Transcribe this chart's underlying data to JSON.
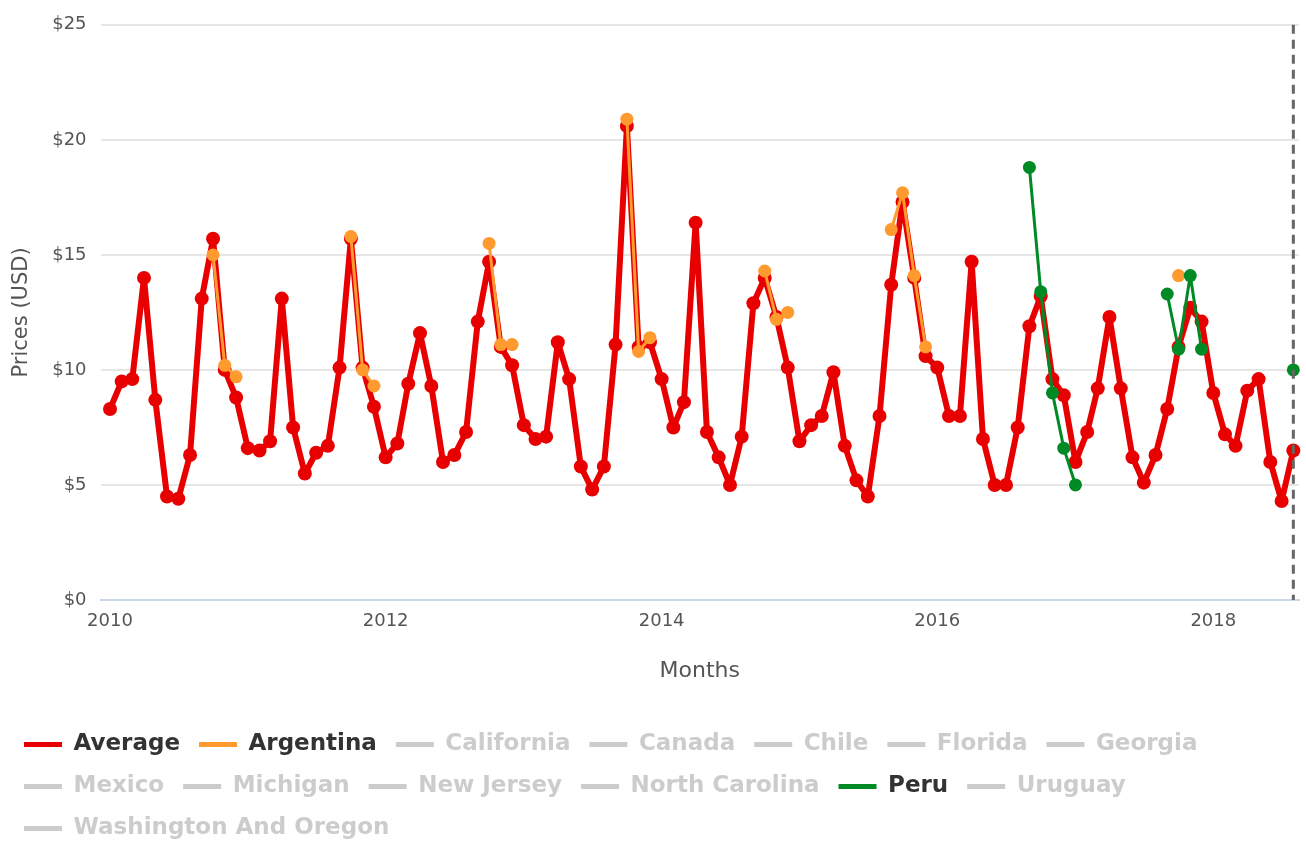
{
  "chart_data": {
    "type": "line",
    "xlabel": "Months",
    "ylabel": "Prices (USD)",
    "grid": "y",
    "legend": "bottom",
    "marker": "circle",
    "xlim": [
      "2009-12-07",
      "2018-08-16"
    ],
    "xticks": [
      {
        "value": "2010-01",
        "label": "2010"
      },
      {
        "value": "2012-01",
        "label": "2012"
      },
      {
        "value": "2014-01",
        "label": "2014"
      },
      {
        "value": "2016-01",
        "label": "2016"
      },
      {
        "value": "2018-01",
        "label": "2018"
      }
    ],
    "ylim": [
      0,
      25
    ],
    "yticks": [
      {
        "value": 0,
        "label": "$0"
      },
      {
        "value": 5,
        "label": "$5"
      },
      {
        "value": 10,
        "label": "$10"
      },
      {
        "value": 15,
        "label": "$15"
      },
      {
        "value": 20,
        "label": "$20"
      },
      {
        "value": 25,
        "label": "$25"
      }
    ],
    "ref_lines": [
      {
        "axis": "x",
        "value": "2018-08",
        "color": "#666666",
        "line_style": "dashed"
      }
    ],
    "x": [
      "2010-01",
      "2010-02",
      "2010-03",
      "2010-04",
      "2010-05",
      "2010-06",
      "2010-07",
      "2010-08",
      "2010-09",
      "2010-10",
      "2010-11",
      "2010-12",
      "2011-01",
      "2011-02",
      "2011-03",
      "2011-04",
      "2011-05",
      "2011-06",
      "2011-07",
      "2011-08",
      "2011-09",
      "2011-10",
      "2011-11",
      "2011-12",
      "2012-01",
      "2012-02",
      "2012-03",
      "2012-04",
      "2012-05",
      "2012-06",
      "2012-07",
      "2012-08",
      "2012-09",
      "2012-10",
      "2012-11",
      "2012-12",
      "2013-01",
      "2013-02",
      "2013-03",
      "2013-04",
      "2013-05",
      "2013-06",
      "2013-07",
      "2013-08",
      "2013-09",
      "2013-10",
      "2013-11",
      "2013-12",
      "2014-01",
      "2014-02",
      "2014-03",
      "2014-04",
      "2014-05",
      "2014-06",
      "2014-07",
      "2014-08",
      "2014-09",
      "2014-10",
      "2014-11",
      "2014-12",
      "2015-01",
      "2015-02",
      "2015-03",
      "2015-04",
      "2015-05",
      "2015-06",
      "2015-07",
      "2015-08",
      "2015-09",
      "2015-10",
      "2015-11",
      "2015-12",
      "2016-01",
      "2016-02",
      "2016-03",
      "2016-04",
      "2016-05",
      "2016-06",
      "2016-07",
      "2016-08",
      "2016-09",
      "2016-10",
      "2016-11",
      "2016-12",
      "2017-01",
      "2017-02",
      "2017-03",
      "2017-04",
      "2017-05",
      "2017-06",
      "2017-07",
      "2017-08",
      "2017-09",
      "2017-10",
      "2017-11",
      "2017-12",
      "2018-01",
      "2018-02",
      "2018-03",
      "2018-04",
      "2018-05",
      "2018-06",
      "2018-07",
      "2018-08"
    ],
    "series": [
      {
        "name": "Average",
        "color": "#e80000",
        "values": [
          8.3,
          9.5,
          9.6,
          14.0,
          8.7,
          4.5,
          4.4,
          6.3,
          13.1,
          15.7,
          10.0,
          8.8,
          6.6,
          6.5,
          6.9,
          13.1,
          7.5,
          5.5,
          6.4,
          6.7,
          10.1,
          15.7,
          10.1,
          8.4,
          6.2,
          6.8,
          9.4,
          11.6,
          9.3,
          6.0,
          6.3,
          7.3,
          12.1,
          14.7,
          11.0,
          10.2,
          7.6,
          7.0,
          7.1,
          11.2,
          9.6,
          5.8,
          4.8,
          5.8,
          11.1,
          20.6,
          11.0,
          11.2,
          9.6,
          7.5,
          8.6,
          16.4,
          7.3,
          6.2,
          5.0,
          7.1,
          12.9,
          14.0,
          12.3,
          10.1,
          6.9,
          7.6,
          8.0,
          9.9,
          6.7,
          5.2,
          4.5,
          8.0,
          13.7,
          17.3,
          14.0,
          10.6,
          10.1,
          8.0,
          8.0,
          14.7,
          7.0,
          5.0,
          5.0,
          7.5,
          11.9,
          13.2,
          9.6,
          8.9,
          6.0,
          7.3,
          9.2,
          12.3,
          9.2,
          6.2,
          5.1,
          6.3,
          8.3,
          11.0,
          12.7,
          12.1,
          9.0,
          7.2,
          6.7,
          9.1,
          9.6,
          6.0,
          4.3,
          6.5
        ]
      },
      {
        "name": "Argentina",
        "color": "#ff9a2e",
        "values": [
          null,
          null,
          null,
          null,
          null,
          null,
          null,
          null,
          null,
          15.0,
          10.2,
          9.7,
          null,
          null,
          null,
          null,
          null,
          null,
          null,
          null,
          null,
          15.8,
          10.0,
          9.3,
          null,
          null,
          null,
          null,
          null,
          null,
          null,
          null,
          null,
          15.5,
          11.1,
          11.1,
          null,
          null,
          null,
          null,
          null,
          null,
          null,
          null,
          null,
          20.9,
          10.8,
          11.4,
          null,
          null,
          null,
          null,
          null,
          null,
          null,
          null,
          null,
          14.3,
          12.2,
          12.5,
          null,
          null,
          null,
          null,
          null,
          null,
          null,
          null,
          16.1,
          17.7,
          14.1,
          11.0,
          null,
          null,
          null,
          null,
          null,
          null,
          null,
          null,
          null,
          null,
          null,
          null,
          null,
          null,
          null,
          null,
          null,
          null,
          null,
          null,
          null,
          14.1,
          null,
          null,
          null,
          null,
          null,
          null,
          null,
          null,
          null,
          null
        ]
      },
      {
        "name": "California",
        "color": "#cccccc",
        "values": [
          null,
          null,
          null,
          null,
          null,
          null,
          null,
          null,
          null,
          null,
          null,
          null,
          null,
          null,
          null,
          null,
          null,
          null,
          null,
          null,
          null,
          null,
          null,
          null,
          null,
          null,
          null,
          null,
          null,
          null,
          null,
          null,
          null,
          null,
          null,
          null,
          null,
          null,
          null,
          null,
          null,
          null,
          null,
          null,
          null,
          null,
          null,
          null,
          null,
          null,
          null,
          null,
          null,
          null,
          null,
          null,
          null,
          null,
          null,
          null,
          null,
          null,
          null,
          null,
          null,
          null,
          null,
          null,
          null,
          null,
          null,
          null,
          null,
          null,
          null,
          null,
          null,
          null,
          null,
          null,
          null,
          null,
          null,
          null,
          null,
          null,
          null,
          null,
          null,
          null,
          null,
          null,
          null,
          null,
          null,
          null,
          null,
          null,
          null,
          null,
          null,
          null,
          null,
          null
        ]
      },
      {
        "name": "Canada",
        "color": "#cccccc",
        "values": [
          null,
          null,
          null,
          null,
          null,
          null,
          null,
          null,
          null,
          null,
          null,
          null,
          null,
          null,
          null,
          null,
          null,
          null,
          null,
          null,
          null,
          null,
          null,
          null,
          null,
          null,
          null,
          null,
          null,
          null,
          null,
          null,
          null,
          null,
          null,
          null,
          null,
          null,
          null,
          null,
          null,
          null,
          null,
          null,
          null,
          null,
          null,
          null,
          null,
          null,
          null,
          null,
          null,
          null,
          null,
          null,
          null,
          null,
          null,
          null,
          null,
          null,
          null,
          null,
          null,
          null,
          null,
          null,
          null,
          null,
          null,
          null,
          null,
          null,
          null,
          null,
          null,
          null,
          null,
          null,
          null,
          null,
          null,
          null,
          null,
          null,
          null,
          null,
          null,
          null,
          null,
          null,
          null,
          null,
          null,
          null,
          null,
          null,
          null,
          null,
          null,
          null,
          null,
          null
        ]
      },
      {
        "name": "Chile",
        "color": "#cccccc",
        "values": [
          null,
          null,
          null,
          null,
          null,
          null,
          null,
          null,
          null,
          null,
          null,
          null,
          null,
          null,
          null,
          null,
          null,
          null,
          null,
          null,
          null,
          null,
          null,
          null,
          null,
          null,
          null,
          null,
          null,
          null,
          null,
          null,
          null,
          null,
          null,
          null,
          null,
          null,
          null,
          null,
          null,
          null,
          null,
          null,
          null,
          null,
          null,
          null,
          null,
          null,
          null,
          null,
          null,
          null,
          null,
          null,
          null,
          null,
          null,
          null,
          null,
          null,
          null,
          null,
          null,
          null,
          null,
          null,
          null,
          null,
          null,
          null,
          null,
          null,
          null,
          null,
          null,
          null,
          null,
          null,
          null,
          null,
          null,
          null,
          null,
          null,
          null,
          null,
          null,
          null,
          null,
          null,
          null,
          null,
          null,
          null,
          null,
          null,
          null,
          null,
          null,
          null,
          null,
          null
        ]
      },
      {
        "name": "Florida",
        "color": "#cccccc",
        "values": [
          null,
          null,
          null,
          null,
          null,
          null,
          null,
          null,
          null,
          null,
          null,
          null,
          null,
          null,
          null,
          null,
          null,
          null,
          null,
          null,
          null,
          null,
          null,
          null,
          null,
          null,
          null,
          null,
          null,
          null,
          null,
          null,
          null,
          null,
          null,
          null,
          null,
          null,
          null,
          null,
          null,
          null,
          null,
          null,
          null,
          null,
          null,
          null,
          null,
          null,
          null,
          null,
          null,
          null,
          null,
          null,
          null,
          null,
          null,
          null,
          null,
          null,
          null,
          null,
          null,
          null,
          null,
          null,
          null,
          null,
          null,
          null,
          null,
          null,
          null,
          null,
          null,
          null,
          null,
          null,
          null,
          null,
          null,
          null,
          null,
          null,
          null,
          null,
          null,
          null,
          null,
          null,
          null,
          null,
          null,
          null,
          null,
          null,
          null,
          null,
          null,
          null,
          null,
          null
        ]
      },
      {
        "name": "Georgia",
        "color": "#cccccc",
        "values": [
          null,
          null,
          null,
          null,
          null,
          null,
          null,
          null,
          null,
          null,
          null,
          null,
          null,
          null,
          null,
          null,
          null,
          null,
          null,
          null,
          null,
          null,
          null,
          null,
          null,
          null,
          null,
          null,
          null,
          null,
          null,
          null,
          null,
          null,
          null,
          null,
          null,
          null,
          null,
          null,
          null,
          null,
          null,
          null,
          null,
          null,
          null,
          null,
          null,
          null,
          null,
          null,
          null,
          null,
          null,
          null,
          null,
          null,
          null,
          null,
          null,
          null,
          null,
          null,
          null,
          null,
          null,
          null,
          null,
          null,
          null,
          null,
          null,
          null,
          null,
          null,
          null,
          null,
          null,
          null,
          null,
          null,
          null,
          null,
          null,
          null,
          null,
          null,
          null,
          null,
          null,
          null,
          null,
          null,
          null,
          null,
          null,
          null,
          null,
          null,
          null,
          null,
          null,
          null
        ]
      },
      {
        "name": "Mexico",
        "color": "#cccccc",
        "values": [
          null,
          null,
          null,
          null,
          null,
          null,
          null,
          null,
          null,
          null,
          null,
          null,
          null,
          null,
          null,
          null,
          null,
          null,
          null,
          null,
          null,
          null,
          null,
          null,
          null,
          null,
          null,
          null,
          null,
          null,
          null,
          null,
          null,
          null,
          null,
          null,
          null,
          null,
          null,
          null,
          null,
          null,
          null,
          null,
          null,
          null,
          null,
          null,
          null,
          null,
          null,
          null,
          null,
          null,
          null,
          null,
          null,
          null,
          null,
          null,
          null,
          null,
          null,
          null,
          null,
          null,
          null,
          null,
          null,
          null,
          null,
          null,
          null,
          null,
          null,
          null,
          null,
          null,
          null,
          null,
          null,
          null,
          null,
          null,
          null,
          null,
          null,
          null,
          null,
          null,
          null,
          null,
          null,
          null,
          null,
          null,
          null,
          null,
          null,
          null,
          null,
          null,
          null,
          null
        ]
      },
      {
        "name": "Michigan",
        "color": "#cccccc",
        "values": [
          null,
          null,
          null,
          null,
          null,
          null,
          null,
          null,
          null,
          null,
          null,
          null,
          null,
          null,
          null,
          null,
          null,
          null,
          null,
          null,
          null,
          null,
          null,
          null,
          null,
          null,
          null,
          null,
          null,
          null,
          null,
          null,
          null,
          null,
          null,
          null,
          null,
          null,
          null,
          null,
          null,
          null,
          null,
          null,
          null,
          null,
          null,
          null,
          null,
          null,
          null,
          null,
          null,
          null,
          null,
          null,
          null,
          null,
          null,
          null,
          null,
          null,
          null,
          null,
          null,
          null,
          null,
          null,
          null,
          null,
          null,
          null,
          null,
          null,
          null,
          null,
          null,
          null,
          null,
          null,
          null,
          null,
          null,
          null,
          null,
          null,
          null,
          null,
          null,
          null,
          null,
          null,
          null,
          null,
          null,
          null,
          null,
          null,
          null,
          null,
          null,
          null,
          null,
          null
        ]
      },
      {
        "name": "New Jersey",
        "color": "#cccccc",
        "values": [
          null,
          null,
          null,
          null,
          null,
          null,
          null,
          null,
          null,
          null,
          null,
          null,
          null,
          null,
          null,
          null,
          null,
          null,
          null,
          null,
          null,
          null,
          null,
          null,
          null,
          null,
          null,
          null,
          null,
          null,
          null,
          null,
          null,
          null,
          null,
          null,
          null,
          null,
          null,
          null,
          null,
          null,
          null,
          null,
          null,
          null,
          null,
          null,
          null,
          null,
          null,
          null,
          null,
          null,
          null,
          null,
          null,
          null,
          null,
          null,
          null,
          null,
          null,
          null,
          null,
          null,
          null,
          null,
          null,
          null,
          null,
          null,
          null,
          null,
          null,
          null,
          null,
          null,
          null,
          null,
          null,
          null,
          null,
          null,
          null,
          null,
          null,
          null,
          null,
          null,
          null,
          null,
          null,
          null,
          null,
          null,
          null,
          null,
          null,
          null,
          null,
          null,
          null,
          null
        ]
      },
      {
        "name": "North Carolina",
        "color": "#cccccc",
        "values": [
          null,
          null,
          null,
          null,
          null,
          null,
          null,
          null,
          null,
          null,
          null,
          null,
          null,
          null,
          null,
          null,
          null,
          null,
          null,
          null,
          null,
          null,
          null,
          null,
          null,
          null,
          null,
          null,
          null,
          null,
          null,
          null,
          null,
          null,
          null,
          null,
          null,
          null,
          null,
          null,
          null,
          null,
          null,
          null,
          null,
          null,
          null,
          null,
          null,
          null,
          null,
          null,
          null,
          null,
          null,
          null,
          null,
          null,
          null,
          null,
          null,
          null,
          null,
          null,
          null,
          null,
          null,
          null,
          null,
          null,
          null,
          null,
          null,
          null,
          null,
          null,
          null,
          null,
          null,
          null,
          null,
          null,
          null,
          null,
          null,
          null,
          null,
          null,
          null,
          null,
          null,
          null,
          null,
          null,
          null,
          null,
          null,
          null,
          null,
          null,
          null,
          null,
          null,
          null
        ]
      },
      {
        "name": "Peru",
        "color": "#008a25",
        "values": [
          null,
          null,
          null,
          null,
          null,
          null,
          null,
          null,
          null,
          null,
          null,
          null,
          null,
          null,
          null,
          null,
          null,
          null,
          null,
          null,
          null,
          null,
          null,
          null,
          null,
          null,
          null,
          null,
          null,
          null,
          null,
          null,
          null,
          null,
          null,
          null,
          null,
          null,
          null,
          null,
          null,
          null,
          null,
          null,
          null,
          null,
          null,
          null,
          null,
          null,
          null,
          null,
          null,
          null,
          null,
          null,
          null,
          null,
          null,
          null,
          null,
          null,
          null,
          null,
          null,
          null,
          null,
          null,
          null,
          null,
          null,
          null,
          null,
          null,
          null,
          null,
          null,
          null,
          null,
          null,
          18.8,
          13.4,
          9.0,
          6.6,
          5.0,
          null,
          null,
          null,
          null,
          null,
          null,
          null,
          13.3,
          10.9,
          14.1,
          10.9,
          null,
          null,
          null,
          null,
          null,
          null,
          null,
          10.0
        ]
      },
      {
        "name": "Uruguay",
        "color": "#cccccc",
        "values": [
          null,
          null,
          null,
          null,
          null,
          null,
          null,
          null,
          null,
          null,
          null,
          null,
          null,
          null,
          null,
          null,
          null,
          null,
          null,
          null,
          null,
          null,
          null,
          null,
          null,
          null,
          null,
          null,
          null,
          null,
          null,
          null,
          null,
          null,
          null,
          null,
          null,
          null,
          null,
          null,
          null,
          null,
          null,
          null,
          null,
          null,
          null,
          null,
          null,
          null,
          null,
          null,
          null,
          null,
          null,
          null,
          null,
          null,
          null,
          null,
          null,
          null,
          null,
          null,
          null,
          null,
          null,
          null,
          null,
          null,
          null,
          null,
          null,
          null,
          null,
          null,
          null,
          null,
          null,
          null,
          null,
          null,
          null,
          null,
          null,
          null,
          null,
          null,
          null,
          null,
          null,
          null,
          null,
          null,
          null,
          null,
          null,
          null,
          null,
          null,
          null,
          null,
          null,
          null
        ]
      },
      {
        "name": "Washington And Oregon",
        "color": "#cccccc",
        "values": [
          null,
          null,
          null,
          null,
          null,
          null,
          null,
          null,
          null,
          null,
          null,
          null,
          null,
          null,
          null,
          null,
          null,
          null,
          null,
          null,
          null,
          null,
          null,
          null,
          null,
          null,
          null,
          null,
          null,
          null,
          null,
          null,
          null,
          null,
          null,
          null,
          null,
          null,
          null,
          null,
          null,
          null,
          null,
          null,
          null,
          null,
          null,
          null,
          null,
          null,
          null,
          null,
          null,
          null,
          null,
          null,
          null,
          null,
          null,
          null,
          null,
          null,
          null,
          null,
          null,
          null,
          null,
          null,
          null,
          null,
          null,
          null,
          null,
          null,
          null,
          null,
          null,
          null,
          null,
          null,
          null,
          null,
          null,
          null,
          null,
          null,
          null,
          null,
          null,
          null,
          null,
          null,
          null,
          null,
          null,
          null,
          null,
          null,
          null,
          null,
          null,
          null,
          null,
          null
        ]
      }
    ]
  }
}
